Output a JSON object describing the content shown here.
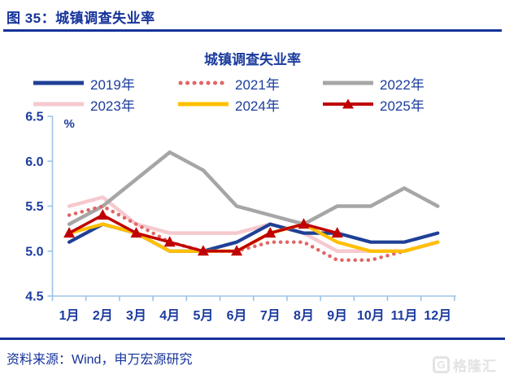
{
  "header": {
    "title": "图 35：城镇调查失业率"
  },
  "chart_data": {
    "type": "line",
    "title": "城镇调查失业率",
    "unit_label": "%",
    "categories": [
      "1月",
      "2月",
      "3月",
      "4月",
      "5月",
      "6月",
      "7月",
      "8月",
      "9月",
      "10月",
      "11月",
      "12月"
    ],
    "ylim": [
      4.5,
      6.5
    ],
    "yticks": [
      4.5,
      5.0,
      5.5,
      6.0,
      6.5
    ],
    "grid": false,
    "legend_position": "top",
    "series": [
      {
        "name": "2019年",
        "color": "#1F4096",
        "style": "solid",
        "width": 4.2,
        "values": [
          5.1,
          5.3,
          5.2,
          5.0,
          5.0,
          5.1,
          5.3,
          5.2,
          5.2,
          5.1,
          5.1,
          5.2
        ]
      },
      {
        "name": "2021年",
        "color": "#E06666",
        "style": "dotted",
        "width": 4.5,
        "values": [
          5.4,
          5.5,
          5.3,
          5.1,
          5.0,
          5.0,
          5.1,
          5.1,
          4.9,
          4.9,
          5.0,
          5.1
        ]
      },
      {
        "name": "2022年",
        "color": "#A6A6A6",
        "style": "solid",
        "width": 4.5,
        "values": [
          5.3,
          5.5,
          5.8,
          6.1,
          5.9,
          5.5,
          5.4,
          5.3,
          5.5,
          5.5,
          5.7,
          5.5
        ]
      },
      {
        "name": "2023年",
        "color": "#F6C9CE",
        "style": "solid",
        "width": 4.5,
        "values": [
          5.5,
          5.6,
          5.3,
          5.2,
          5.2,
          5.2,
          5.3,
          5.2,
          5.0,
          5.0,
          5.0,
          5.1
        ]
      },
      {
        "name": "2024年",
        "color": "#FFC000",
        "style": "solid",
        "width": 4.2,
        "values": [
          5.2,
          5.3,
          5.2,
          5.0,
          5.0,
          5.0,
          5.2,
          5.3,
          5.1,
          5.0,
          5.0,
          5.1
        ]
      },
      {
        "name": "2025年",
        "color": "#C00000",
        "style": "triangle",
        "width": 3.5,
        "values": [
          5.2,
          5.4,
          5.2,
          5.1,
          5.0,
          5.0,
          5.2,
          5.3,
          5.2
        ]
      }
    ],
    "draw_order": [
      3,
      2,
      1,
      0,
      4,
      5
    ],
    "axis_color": "#9DC3E6",
    "label_color": "#1C3C9E"
  },
  "footer": {
    "source": "资料来源：Wind，申万宏源研究"
  },
  "watermark": {
    "icon": "g-logo",
    "text": "格隆汇"
  }
}
